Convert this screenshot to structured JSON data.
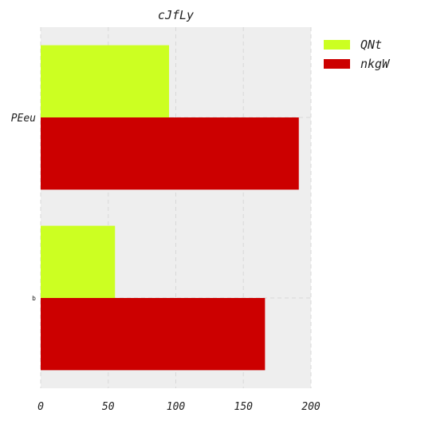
{
  "chart_data": {
    "type": "bar",
    "orientation": "horizontal",
    "title": "cJfLy",
    "xlabel": "",
    "ylabel": "",
    "categories": [
      "PEeu",
      "b"
    ],
    "series": [
      {
        "name": "QNt",
        "color": "#ccff22",
        "values": [
          95,
          55
        ]
      },
      {
        "name": "nkgW",
        "color": "#cc0000",
        "values": [
          191,
          166
        ]
      }
    ],
    "xlim": [
      0,
      200
    ],
    "xticks": [
      "0",
      "50",
      "100",
      "150",
      "200"
    ],
    "grid": true,
    "legend_position": "outside-top-right",
    "background_color": "#eeeeee",
    "grid_color": "#d8d8d8"
  }
}
